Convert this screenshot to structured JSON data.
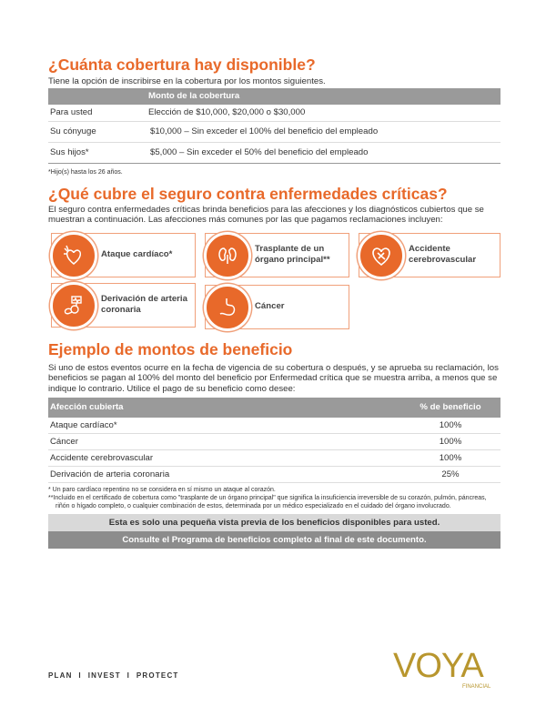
{
  "section1": {
    "title": "¿Cuánta cobertura hay disponible?",
    "intro": "Tiene la opción de inscribirse en la cobertura por los montos siguientes.",
    "table": {
      "header": [
        "",
        "Monto de la cobertura"
      ],
      "rows": [
        [
          "Para usted",
          "Elección de $10,000, $20,000 o $30,000"
        ],
        [
          "Su cónyuge",
          "$10,000 – Sin exceder el 100% del beneficio del empleado"
        ],
        [
          "Sus hijos*",
          "$5,000 – Sin exceder el 50% del beneficio del empleado"
        ]
      ]
    },
    "footnote": "*Hijo(s) hasta los 26 años."
  },
  "section2": {
    "title": "¿Qué cubre el seguro contra enfermedades críticas?",
    "intro": "El seguro contra enfermedades críticas brinda beneficios para las afecciones y los diagnósticos cubiertos que se muestran a continuación. Las afecciones más comunes por las que pagamos reclamaciones incluyen:",
    "cards": [
      {
        "label": "Ataque cardíaco*",
        "icon": "heart-attack-icon"
      },
      {
        "label": "Trasplante de un órgano principal**",
        "icon": "kidney-icon"
      },
      {
        "label": "Accidente cerebrovascular",
        "icon": "heart-bandage-icon"
      },
      {
        "label": "Derivación de arteria coronaria",
        "icon": "heart-monitor-icon"
      },
      {
        "label": "Cáncer",
        "icon": "stomach-icon"
      }
    ]
  },
  "section3": {
    "title": "Ejemplo de montos de beneficio",
    "intro": "Si uno de estos eventos ocurre en la fecha de vigencia de su cobertura o después, y se aprueba su reclamación, los beneficios se pagan al 100% del monto del beneficio por Enfermedad crítica que se muestra arriba, a menos que se indique lo contrario. Utilice el pago de su beneficio como desee:",
    "table": {
      "header": [
        "Afección cubierta",
        "% de beneficio"
      ],
      "rows": [
        [
          "Ataque cardíaco*",
          "100%"
        ],
        [
          "Cáncer",
          "100%"
        ],
        [
          "Accidente cerebrovascular",
          "100%"
        ],
        [
          "Derivación de arteria coronaria",
          "25%"
        ]
      ]
    },
    "footnotes": [
      "* Un paro cardíaco repentino no se considera en sí mismo un ataque al corazón.",
      "**Incluido en el certificado de cobertura como \"trasplante de un órgano principal\" que significa la insuficiencia irreversible de su corazón, pulmón, páncreas, riñón o hígado completo, o cualquier combinación de estos, determinada por un médico especializado en el cuidado del órgano involucrado."
    ],
    "banner1": "Esta es solo una pequeña vista previa de los beneficios disponibles para usted.",
    "banner2": "Consulte el Programa de beneficios completo al final de este documento."
  },
  "footer": {
    "tagline": "PLAN  I  INVEST  I  PROTECT",
    "logo": "VOYA",
    "logo_sub": "FINANCIAL"
  },
  "colors": {
    "accent": "#e8692a",
    "table_header": "#9a9a9a"
  }
}
